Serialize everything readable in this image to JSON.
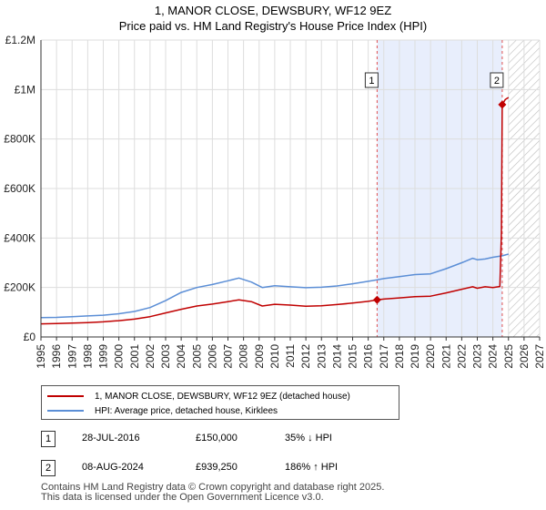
{
  "chart_data": {
    "type": "line",
    "title_line1": "1, MANOR CLOSE, DEWSBURY, WF12 9EZ",
    "title_line2": "Price paid vs. HM Land Registry's House Price Index (HPI)",
    "xlim": [
      1995,
      2027
    ],
    "ylim": [
      0,
      1200000
    ],
    "y_ticks": [
      0,
      200000,
      400000,
      600000,
      800000,
      1000000,
      1200000
    ],
    "y_tick_labels": [
      "£0",
      "£200K",
      "£400K",
      "£600K",
      "£800K",
      "£1M",
      "£1.2M"
    ],
    "x_ticks": [
      1995,
      1996,
      1997,
      1998,
      1999,
      2000,
      2001,
      2002,
      2003,
      2004,
      2005,
      2006,
      2007,
      2008,
      2009,
      2010,
      2011,
      2012,
      2013,
      2014,
      2015,
      2016,
      2017,
      2018,
      2019,
      2020,
      2021,
      2022,
      2023,
      2024,
      2025,
      2026,
      2027
    ],
    "shaded_region": [
      2016.57,
      2024.6
    ],
    "future_hatch_start": 2025.0,
    "series": [
      {
        "name": "1, MANOR CLOSE, DEWSBURY, WF12 9EZ (detached house)",
        "color": "#c00000",
        "points": [
          [
            1995.0,
            53000
          ],
          [
            1996.0,
            54000
          ],
          [
            1997.0,
            56000
          ],
          [
            1998.0,
            58000
          ],
          [
            1999.0,
            61000
          ],
          [
            2000.0,
            66000
          ],
          [
            2001.0,
            72000
          ],
          [
            2002.0,
            82000
          ],
          [
            2003.0,
            97000
          ],
          [
            2004.0,
            112000
          ],
          [
            2005.0,
            125000
          ],
          [
            2006.0,
            133000
          ],
          [
            2007.0,
            143000
          ],
          [
            2007.7,
            150000
          ],
          [
            2008.5,
            143000
          ],
          [
            2009.2,
            125000
          ],
          [
            2010.0,
            132000
          ],
          [
            2011.0,
            129000
          ],
          [
            2012.0,
            124000
          ],
          [
            2013.0,
            126000
          ],
          [
            2014.0,
            131000
          ],
          [
            2015.0,
            137000
          ],
          [
            2016.0,
            144000
          ],
          [
            2016.57,
            150000
          ],
          [
            2017.0,
            153000
          ],
          [
            2018.0,
            158000
          ],
          [
            2019.0,
            163000
          ],
          [
            2020.0,
            165000
          ],
          [
            2021.0,
            178000
          ],
          [
            2022.0,
            193000
          ],
          [
            2022.7,
            203000
          ],
          [
            2023.0,
            197000
          ],
          [
            2023.5,
            203000
          ],
          [
            2024.0,
            200000
          ],
          [
            2024.45,
            204000
          ],
          [
            2024.55,
            420000
          ],
          [
            2024.6,
            939250
          ],
          [
            2024.8,
            960000
          ],
          [
            2025.0,
            968000
          ]
        ]
      },
      {
        "name": "HPI: Average price, detached house, Kirklees",
        "color": "#5b8ed6",
        "points": [
          [
            1995.0,
            78000
          ],
          [
            1996.0,
            79000
          ],
          [
            1997.0,
            82000
          ],
          [
            1998.0,
            85000
          ],
          [
            1999.0,
            88000
          ],
          [
            2000.0,
            94000
          ],
          [
            2001.0,
            103000
          ],
          [
            2002.0,
            119000
          ],
          [
            2003.0,
            147000
          ],
          [
            2004.0,
            180000
          ],
          [
            2005.0,
            200000
          ],
          [
            2006.0,
            212000
          ],
          [
            2007.0,
            227000
          ],
          [
            2007.7,
            238000
          ],
          [
            2008.5,
            222000
          ],
          [
            2009.2,
            200000
          ],
          [
            2010.0,
            207000
          ],
          [
            2011.0,
            203000
          ],
          [
            2012.0,
            199000
          ],
          [
            2013.0,
            201000
          ],
          [
            2014.0,
            206000
          ],
          [
            2015.0,
            215000
          ],
          [
            2016.0,
            225000
          ],
          [
            2016.57,
            231000
          ],
          [
            2017.0,
            236000
          ],
          [
            2018.0,
            244000
          ],
          [
            2019.0,
            252000
          ],
          [
            2020.0,
            255000
          ],
          [
            2021.0,
            276000
          ],
          [
            2022.0,
            300000
          ],
          [
            2022.7,
            318000
          ],
          [
            2023.0,
            312000
          ],
          [
            2023.5,
            315000
          ],
          [
            2024.0,
            322000
          ],
          [
            2024.6,
            328000
          ],
          [
            2025.0,
            335000
          ]
        ]
      }
    ],
    "sales": [
      {
        "id": "1",
        "x": 2016.57,
        "value": 150000
      },
      {
        "id": "2",
        "x": 2024.6,
        "value": 939250
      }
    ]
  },
  "legend": {
    "property_label": "1, MANOR CLOSE, DEWSBURY, WF12 9EZ (detached house)",
    "hpi_label": "HPI: Average price, detached house, Kirklees"
  },
  "annotations": [
    {
      "id": "1",
      "date": "28-JUL-2016",
      "price": "£150,000",
      "hpi": "35% ↓ HPI"
    },
    {
      "id": "2",
      "date": "08-AUG-2024",
      "price": "£939,250",
      "hpi": "186% ↑ HPI"
    }
  ],
  "footer": {
    "line1": "Contains HM Land Registry data © Crown copyright and database right 2025.",
    "line2": "This data is licensed under the Open Government Licence v3.0."
  }
}
